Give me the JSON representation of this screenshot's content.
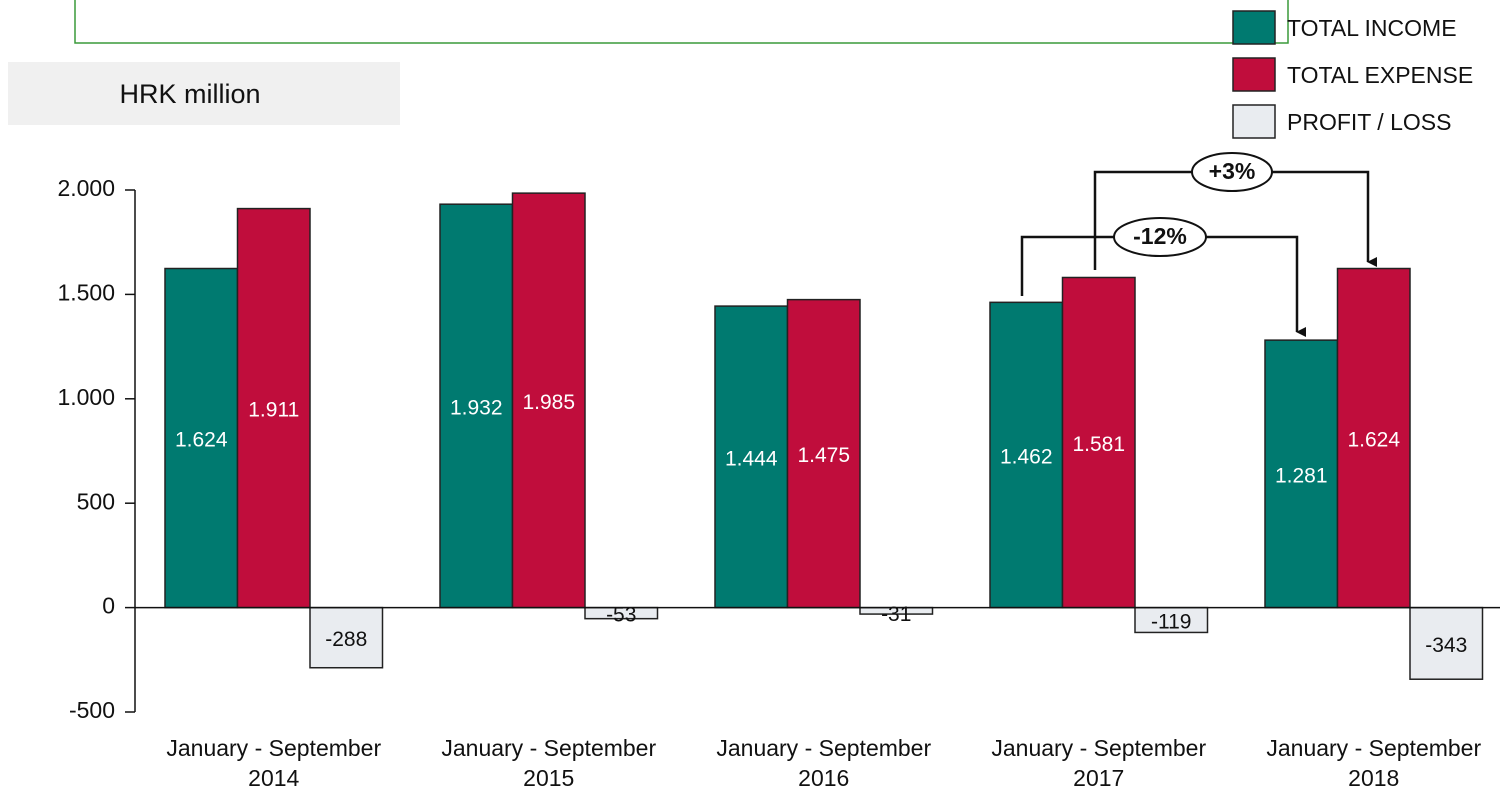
{
  "chart_data": {
    "type": "bar",
    "subtitle": "HRK million",
    "categories": [
      "January - September 2014",
      "January - September 2015",
      "January - September 2016",
      "January - September 2017",
      "January - September 2018"
    ],
    "series": [
      {
        "name": "TOTAL INCOME",
        "color": "#007a70",
        "values": [
          1624,
          1932,
          1444,
          1462,
          1281
        ],
        "value_labels": [
          "1.624",
          "1.932",
          "1.444",
          "1.462",
          "1.281"
        ]
      },
      {
        "name": "TOTAL EXPENSE",
        "color": "#c00d3c",
        "values": [
          1911,
          1985,
          1475,
          1581,
          1624
        ],
        "value_labels": [
          "1.911",
          "1.985",
          "1.475",
          "1.581",
          "1.624"
        ]
      },
      {
        "name": "PROFIT / LOSS",
        "color": "#e9ecf0",
        "values": [
          -288,
          -53,
          -31,
          -119,
          -343
        ],
        "value_labels": [
          "-288",
          "-53",
          "-31",
          "-119",
          "-343"
        ]
      }
    ],
    "ylim": [
      -500,
      2000
    ],
    "yticks": [
      -500,
      0,
      500,
      {
        "value": 1000,
        "label": "1.000"
      },
      {
        "value": 1500,
        "label": "1.500"
      },
      {
        "value": 2000,
        "label": "2.000"
      }
    ],
    "annotations": [
      "-12%",
      "+3%"
    ],
    "legend": "top-right"
  }
}
